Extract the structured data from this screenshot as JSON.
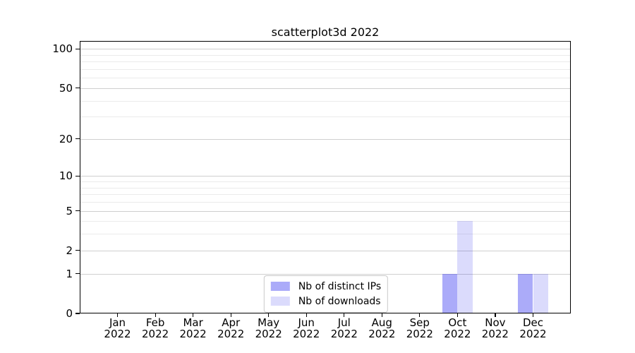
{
  "title": "scatterplot3d 2022",
  "chart_data": {
    "type": "bar",
    "title": "scatterplot3d 2022",
    "categories": [
      "Jan",
      "Feb",
      "Mar",
      "Apr",
      "May",
      "Jun",
      "Jul",
      "Aug",
      "Sep",
      "Oct",
      "Nov",
      "Dec"
    ],
    "category_year": "2022",
    "series": [
      {
        "name": "Nb of distinct IPs",
        "color_hex": "#aaaaf8",
        "color_rgba": "rgba(34,34,238,0.38)",
        "values": [
          0,
          0,
          0,
          0,
          0,
          0,
          0,
          0,
          0,
          1,
          0,
          1
        ]
      },
      {
        "name": "Nb of downloads",
        "color_hex": "#dbdbf8",
        "color_rgba": "rgba(34,34,238,0.16)",
        "values": [
          0,
          0,
          0,
          0,
          0,
          0,
          0,
          0,
          0,
          4,
          0,
          1
        ]
      }
    ],
    "yscale": "log1p",
    "ylim": [
      0,
      115
    ],
    "y_major_ticks": [
      0,
      1,
      2,
      5,
      10,
      20,
      50,
      100
    ],
    "y_minor_gridlines": [
      3,
      4,
      6,
      7,
      8,
      9,
      30,
      40,
      60,
      70,
      80,
      90
    ],
    "xlabel": "",
    "ylabel": "",
    "grid": "horizontal",
    "legend_position": "lower center",
    "colors": {
      "major_grid": "#cfcfcf",
      "minor_grid": "#ebebeb",
      "spine": "#000000",
      "background": "#ffffff"
    }
  },
  "legend": {
    "items": [
      {
        "label": "Nb of distinct IPs",
        "color": "rgba(34,34,238,0.38)"
      },
      {
        "label": "Nb of downloads",
        "color": "rgba(34,34,238,0.16)"
      }
    ]
  }
}
